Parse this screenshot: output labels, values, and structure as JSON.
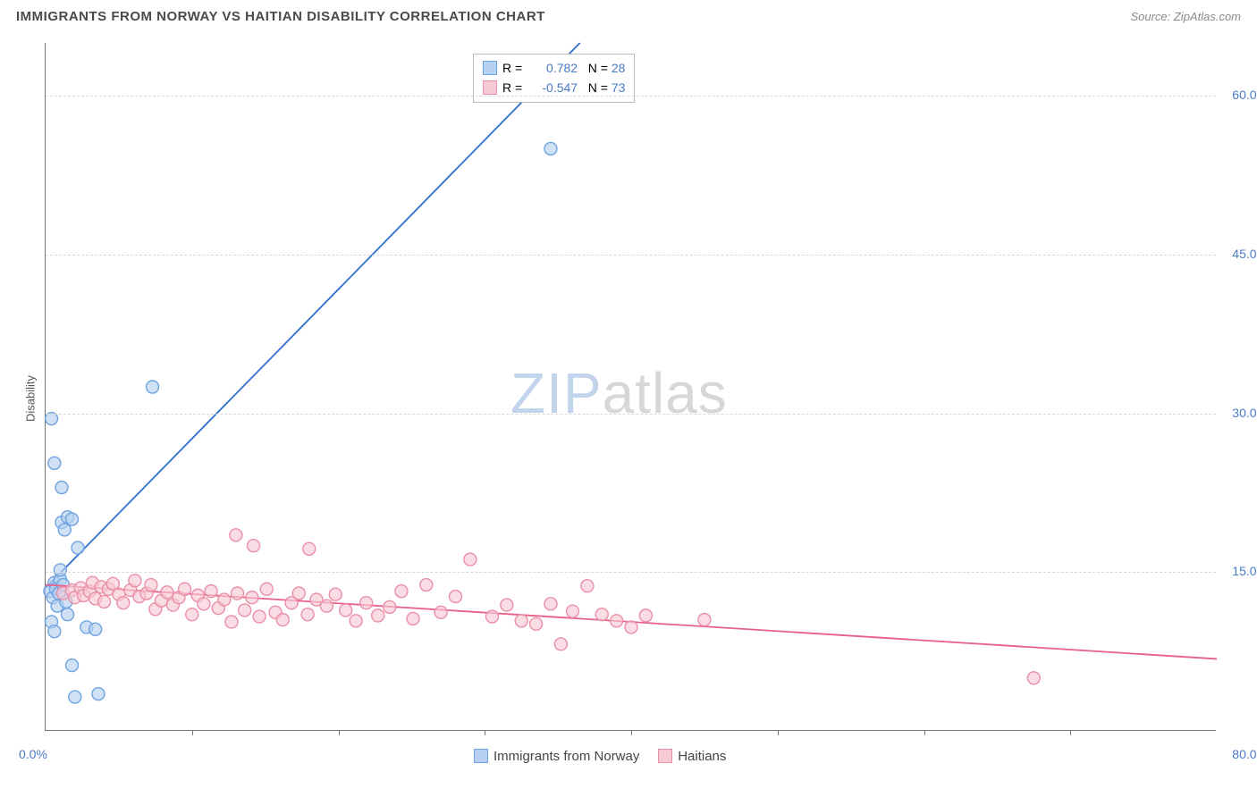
{
  "header": {
    "title": "IMMIGRANTS FROM NORWAY VS HAITIAN DISABILITY CORRELATION CHART",
    "source_label": "Source: ZipAtlas.com"
  },
  "chart": {
    "type": "scatter",
    "ylabel": "Disability",
    "xlim": [
      0,
      80
    ],
    "ylim": [
      0,
      65
    ],
    "xtick_marks": [
      10,
      20,
      30,
      40,
      50,
      60,
      70
    ],
    "xtick_labels": [
      {
        "v": 0,
        "label": "0.0%"
      },
      {
        "v": 80,
        "label": "80.0%"
      }
    ],
    "ytick_labels": [
      {
        "v": 15,
        "label": "15.0%"
      },
      {
        "v": 30,
        "label": "30.0%"
      },
      {
        "v": 45,
        "label": "45.0%"
      },
      {
        "v": 60,
        "label": "60.0%"
      }
    ],
    "grid_y": [
      15,
      30,
      45,
      60
    ],
    "grid_color": "#d8d8d8",
    "background_color": "#ffffff",
    "axis_color": "#777777",
    "label_color": "#4a7bc8",
    "marker_radius": 7,
    "marker_stroke_width": 1.4,
    "line_width": 1.8,
    "series": [
      {
        "name": "Immigrants from Norway",
        "color_fill": "#b7d1f0",
        "color_stroke": "#6fa3e0",
        "line_color": "#2f6fd0",
        "r": "0.782",
        "n": "28",
        "regression": {
          "x1": 0,
          "y1": 13.5,
          "x2": 36.5,
          "y2": 65
        },
        "points": [
          [
            0.3,
            13.2
          ],
          [
            0.5,
            12.6
          ],
          [
            0.6,
            14.0
          ],
          [
            0.7,
            13.4
          ],
          [
            0.9,
            13.0
          ],
          [
            0.8,
            11.8
          ],
          [
            0.4,
            10.3
          ],
          [
            0.6,
            9.4
          ],
          [
            1.0,
            14.3
          ],
          [
            1.2,
            13.8
          ],
          [
            1.4,
            12.2
          ],
          [
            1.5,
            11.0
          ],
          [
            1.0,
            15.2
          ],
          [
            1.1,
            19.7
          ],
          [
            1.3,
            19.0
          ],
          [
            1.5,
            20.2
          ],
          [
            1.8,
            20.0
          ],
          [
            2.2,
            17.3
          ],
          [
            2.8,
            9.8
          ],
          [
            3.4,
            9.6
          ],
          [
            3.6,
            3.5
          ],
          [
            2.0,
            3.2
          ],
          [
            1.8,
            6.2
          ],
          [
            0.6,
            25.3
          ],
          [
            1.1,
            23.0
          ],
          [
            0.4,
            29.5
          ],
          [
            7.3,
            32.5
          ],
          [
            34.5,
            55.0
          ]
        ]
      },
      {
        "name": "Haitians",
        "color_fill": "#f7c9d5",
        "color_stroke": "#ea8fa8",
        "line_color": "#e85f89",
        "r": "-0.547",
        "n": "73",
        "regression": {
          "x1": 0,
          "y1": 13.8,
          "x2": 80,
          "y2": 6.8
        },
        "points": [
          [
            1.2,
            13.0
          ],
          [
            1.8,
            13.3
          ],
          [
            2.0,
            12.6
          ],
          [
            2.4,
            13.5
          ],
          [
            2.6,
            12.8
          ],
          [
            3.0,
            13.2
          ],
          [
            3.2,
            14.0
          ],
          [
            3.4,
            12.5
          ],
          [
            3.8,
            13.6
          ],
          [
            4.0,
            12.2
          ],
          [
            4.3,
            13.4
          ],
          [
            4.6,
            13.9
          ],
          [
            5.0,
            12.9
          ],
          [
            5.3,
            12.1
          ],
          [
            5.8,
            13.3
          ],
          [
            6.1,
            14.2
          ],
          [
            6.4,
            12.7
          ],
          [
            6.9,
            13.0
          ],
          [
            7.2,
            13.8
          ],
          [
            7.5,
            11.5
          ],
          [
            7.9,
            12.3
          ],
          [
            8.3,
            13.1
          ],
          [
            8.7,
            11.9
          ],
          [
            9.1,
            12.6
          ],
          [
            9.5,
            13.4
          ],
          [
            10.0,
            11.0
          ],
          [
            10.4,
            12.8
          ],
          [
            10.8,
            12.0
          ],
          [
            11.3,
            13.2
          ],
          [
            11.8,
            11.6
          ],
          [
            12.2,
            12.4
          ],
          [
            12.7,
            10.3
          ],
          [
            13.1,
            13.0
          ],
          [
            13.6,
            11.4
          ],
          [
            14.1,
            12.6
          ],
          [
            14.6,
            10.8
          ],
          [
            15.1,
            13.4
          ],
          [
            15.7,
            11.2
          ],
          [
            16.2,
            10.5
          ],
          [
            16.8,
            12.1
          ],
          [
            17.3,
            13.0
          ],
          [
            17.9,
            11.0
          ],
          [
            18.5,
            12.4
          ],
          [
            19.2,
            11.8
          ],
          [
            19.8,
            12.9
          ],
          [
            20.5,
            11.4
          ],
          [
            21.2,
            10.4
          ],
          [
            21.9,
            12.1
          ],
          [
            22.7,
            10.9
          ],
          [
            23.5,
            11.7
          ],
          [
            24.3,
            13.2
          ],
          [
            25.1,
            10.6
          ],
          [
            26.0,
            13.8
          ],
          [
            27.0,
            11.2
          ],
          [
            28.0,
            12.7
          ],
          [
            29.0,
            16.2
          ],
          [
            13.0,
            18.5
          ],
          [
            14.2,
            17.5
          ],
          [
            18.0,
            17.2
          ],
          [
            30.5,
            10.8
          ],
          [
            31.5,
            11.9
          ],
          [
            32.5,
            10.4
          ],
          [
            33.5,
            10.1
          ],
          [
            34.5,
            12.0
          ],
          [
            35.2,
            8.2
          ],
          [
            36.0,
            11.3
          ],
          [
            37.0,
            13.7
          ],
          [
            38.0,
            11.0
          ],
          [
            39.0,
            10.4
          ],
          [
            40.0,
            9.8
          ],
          [
            41.0,
            10.9
          ],
          [
            45.0,
            10.5
          ],
          [
            67.5,
            5.0
          ]
        ]
      }
    ],
    "bottom_legend": [
      {
        "swatch_fill": "#b7d1f0",
        "swatch_stroke": "#6fa3e0",
        "label": "Immigrants from Norway"
      },
      {
        "swatch_fill": "#f7c9d5",
        "swatch_stroke": "#ea8fa8",
        "label": "Haitians"
      }
    ],
    "watermark": {
      "zip": "ZIP",
      "atlas": "atlas"
    }
  }
}
